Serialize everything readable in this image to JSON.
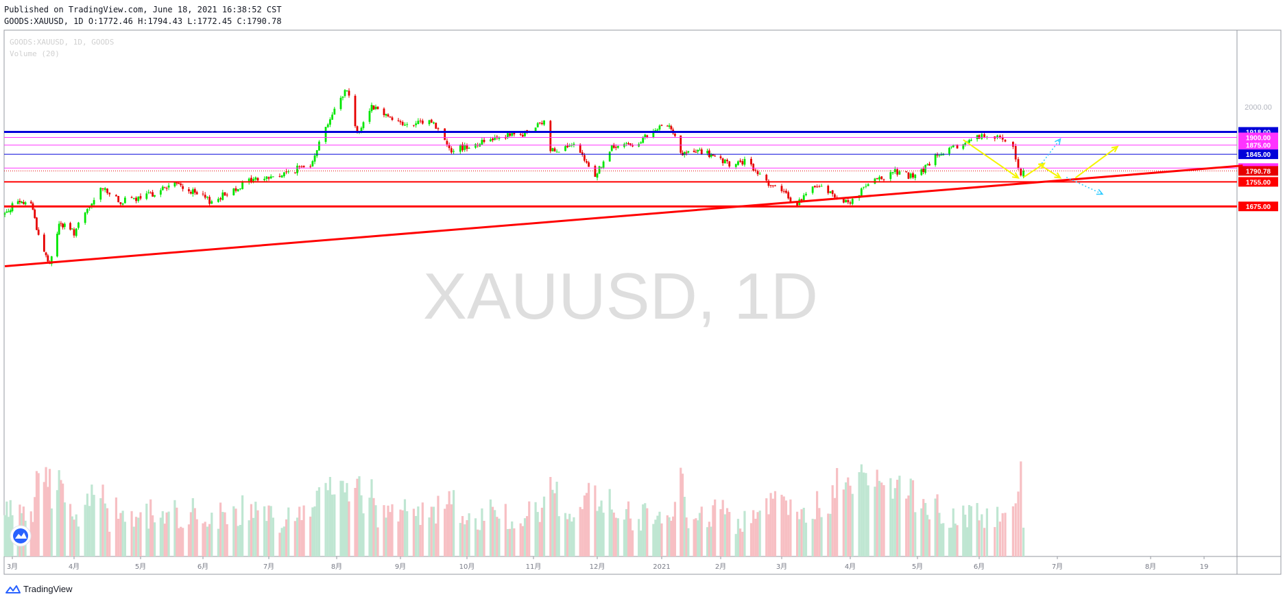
{
  "header": {
    "published": "Published on TradingView.com, June 18, 2021 16:38:52 CST",
    "ohlc": "GOODS:XAUUSD, 1D O:1772.46 H:1794.43 L:1772.45 C:1790.78"
  },
  "legend": {
    "symbol": "GOODS:XAUUSD, 1D, GOODS",
    "volume": "Volume (20)"
  },
  "watermark": "XAUUSD, 1D",
  "footer": {
    "brand": "TradingView",
    "logo_icon": "tradingview-logo-icon"
  },
  "colors": {
    "up": "#00e600",
    "down": "#e60000",
    "vol_up": "#bfe6d2",
    "vol_down": "#f7bfc3",
    "blue": "#0000d9",
    "magenta": "#ff33ff",
    "red": "#ff0000",
    "yellow": "#f5f500",
    "cyan": "#33ccff"
  },
  "chart_data": {
    "type": "candlestick",
    "title": "GOODS:XAUUSD, 1D, GOODS",
    "ylim": [
      1540,
      2120
    ],
    "y_ticks": [
      "2000.00"
    ],
    "x_ticks": [
      "3月",
      "4月",
      "5月",
      "6月",
      "7月",
      "8月",
      "9月",
      "10月",
      "11月",
      "12月",
      "2021",
      "2月",
      "3月",
      "4月",
      "5月",
      "6月",
      "7月",
      "8月",
      "19"
    ],
    "last_price": {
      "value": 1790.78,
      "label": "1790.78"
    },
    "levels": [
      {
        "value": 1918,
        "label": "1918.00",
        "color": "#0000d9",
        "weight": "thick"
      },
      {
        "value": 1900,
        "label": "1900.00",
        "color": "#ff33ff",
        "weight": "thin"
      },
      {
        "value": 1875,
        "label": "1875.00",
        "color": "#ff33ff",
        "weight": "thin"
      },
      {
        "value": 1845,
        "label": "1845.00",
        "color": "#0000d9",
        "weight": "thin"
      },
      {
        "value": 1800,
        "label": "1800.00",
        "color": "#ff33ff",
        "weight": "thin"
      },
      {
        "value": 1755,
        "label": "1755.00",
        "color": "#ff0000",
        "weight": "medium"
      },
      {
        "value": 1675,
        "label": "1675.00",
        "color": "#ff0000",
        "weight": "thick"
      }
    ],
    "price_path": [
      [
        "2020-02-24",
        1650
      ],
      [
        "2020-02-28",
        1680
      ],
      [
        "2020-03-09",
        1690
      ],
      [
        "2020-03-13",
        1580
      ],
      [
        "2020-03-19",
        1480
      ],
      [
        "2020-03-24",
        1620
      ],
      [
        "2020-04-01",
        1590
      ],
      [
        "2020-04-14",
        1740
      ],
      [
        "2020-04-21",
        1690
      ],
      [
        "2020-05-01",
        1700
      ],
      [
        "2020-05-18",
        1750
      ],
      [
        "2020-06-05",
        1690
      ],
      [
        "2020-06-22",
        1760
      ],
      [
        "2020-07-06",
        1775
      ],
      [
        "2020-07-20",
        1815
      ],
      [
        "2020-07-28",
        1950
      ],
      [
        "2020-08-06",
        2063
      ],
      [
        "2020-08-11",
        1912
      ],
      [
        "2020-08-18",
        2005
      ],
      [
        "2020-09-04",
        1935
      ],
      [
        "2020-09-15",
        1955
      ],
      [
        "2020-09-24",
        1860
      ],
      [
        "2020-10-06",
        1880
      ],
      [
        "2020-10-15",
        1905
      ],
      [
        "2020-10-26",
        1905
      ],
      [
        "2020-11-06",
        1950
      ],
      [
        "2020-11-09",
        1860
      ],
      [
        "2020-11-20",
        1870
      ],
      [
        "2020-11-30",
        1777
      ],
      [
        "2020-12-08",
        1865
      ],
      [
        "2020-12-21",
        1885
      ],
      [
        "2021-01-05",
        1950
      ],
      [
        "2021-01-11",
        1845
      ],
      [
        "2021-01-22",
        1855
      ],
      [
        "2021-02-05",
        1810
      ],
      [
        "2021-02-12",
        1820
      ],
      [
        "2021-02-26",
        1735
      ],
      [
        "2021-03-08",
        1685
      ],
      [
        "2021-03-17",
        1745
      ],
      [
        "2021-03-31",
        1685
      ],
      [
        "2021-04-09",
        1745
      ],
      [
        "2021-04-21",
        1790
      ],
      [
        "2021-04-30",
        1768
      ],
      [
        "2021-05-10",
        1835
      ],
      [
        "2021-05-24",
        1880
      ],
      [
        "2021-06-01",
        1905
      ],
      [
        "2021-06-10",
        1893
      ],
      [
        "2021-06-14",
        1866
      ],
      [
        "2021-06-17",
        1773
      ],
      [
        "2021-06-18",
        1790.78
      ]
    ],
    "trendline": [
      [
        "2020-02-24",
        1480
      ],
      [
        "2021-09-01",
        1808
      ]
    ],
    "projection_yellow": [
      [
        [
          "2021-05-24",
          1892
        ],
        [
          "2021-06-16",
          1768
        ]
      ],
      [
        [
          "2021-06-18",
          1770
        ],
        [
          "2021-06-26",
          1815
        ]
      ],
      [
        [
          "2021-06-24",
          1812
        ],
        [
          "2021-07-02",
          1768
        ]
      ],
      [
        [
          "2021-07-07",
          1768
        ],
        [
          "2021-07-21",
          1870
        ]
      ]
    ],
    "projection_cyan": [
      [
        [
          "2021-06-25",
          1815
        ],
        [
          "2021-07-02",
          1895
        ]
      ],
      [
        [
          "2021-07-04",
          1770
        ],
        [
          "2021-07-16",
          1715
        ]
      ]
    ]
  }
}
